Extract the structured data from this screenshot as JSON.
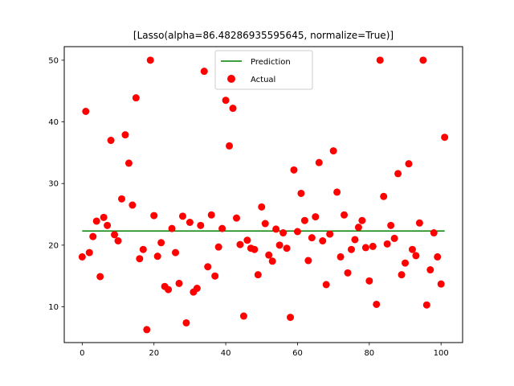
{
  "chart_data": {
    "type": "scatter",
    "title": "[Lasso(alpha=86.48286935595645, normalize=True)]",
    "xlabel": "",
    "ylabel": "",
    "xlim": [
      -5,
      106
    ],
    "ylim": [
      4.2,
      52.2
    ],
    "xticks": [
      0,
      20,
      40,
      60,
      80,
      100
    ],
    "yticks": [
      10,
      20,
      30,
      40,
      50
    ],
    "grid": false,
    "legend_position": "top-center",
    "series": [
      {
        "name": "Prediction",
        "type": "line",
        "color": "#008000",
        "x": [
          0,
          101
        ],
        "y": [
          22.3,
          22.3
        ]
      },
      {
        "name": "Actual",
        "type": "scatter",
        "color": "#ff0000",
        "x": [
          0,
          1,
          2,
          3,
          4,
          5,
          6,
          7,
          8,
          9,
          10,
          11,
          12,
          13,
          14,
          15,
          16,
          17,
          18,
          19,
          20,
          21,
          22,
          23,
          24,
          25,
          26,
          27,
          28,
          29,
          30,
          31,
          32,
          33,
          34,
          35,
          36,
          37,
          38,
          39,
          40,
          41,
          42,
          43,
          44,
          45,
          46,
          47,
          48,
          49,
          50,
          51,
          52,
          53,
          54,
          55,
          56,
          57,
          58,
          59,
          60,
          61,
          62,
          63,
          64,
          65,
          66,
          67,
          68,
          69,
          70,
          71,
          72,
          73,
          74,
          75,
          76,
          77,
          78,
          79,
          80,
          81,
          82,
          83,
          84,
          85,
          86,
          87,
          88,
          89,
          90,
          91,
          92,
          93,
          94,
          95,
          96,
          97,
          98,
          99,
          100,
          101
        ],
        "y": [
          18.1,
          41.7,
          18.8,
          21.4,
          23.9,
          14.9,
          24.5,
          23.2,
          37.0,
          21.7,
          20.7,
          27.5,
          37.9,
          33.3,
          26.5,
          43.9,
          17.8,
          19.3,
          6.3,
          50.0,
          24.8,
          18.2,
          20.4,
          13.3,
          12.8,
          22.7,
          18.8,
          13.8,
          24.7,
          7.4,
          23.7,
          12.4,
          13.0,
          23.2,
          48.2,
          16.5,
          24.9,
          15.0,
          19.7,
          22.7,
          43.5,
          36.1,
          42.2,
          24.4,
          20.1,
          8.5,
          20.8,
          19.5,
          19.3,
          15.2,
          26.2,
          23.5,
          18.4,
          17.4,
          22.6,
          20.0,
          22.0,
          19.5,
          8.3,
          32.2,
          22.2,
          28.4,
          24.0,
          17.5,
          21.2,
          24.6,
          33.4,
          20.7,
          13.6,
          21.8,
          35.3,
          28.6,
          18.1,
          24.9,
          15.5,
          19.3,
          20.9,
          22.9,
          24.0,
          19.6,
          14.2,
          19.8,
          10.4,
          50.0,
          27.9,
          20.2,
          23.2,
          21.1,
          31.6,
          15.2,
          17.1,
          33.2,
          19.3,
          18.3,
          23.6,
          50.0,
          10.3,
          16.0,
          22.0,
          18.1,
          13.7,
          37.5
        ]
      }
    ]
  }
}
